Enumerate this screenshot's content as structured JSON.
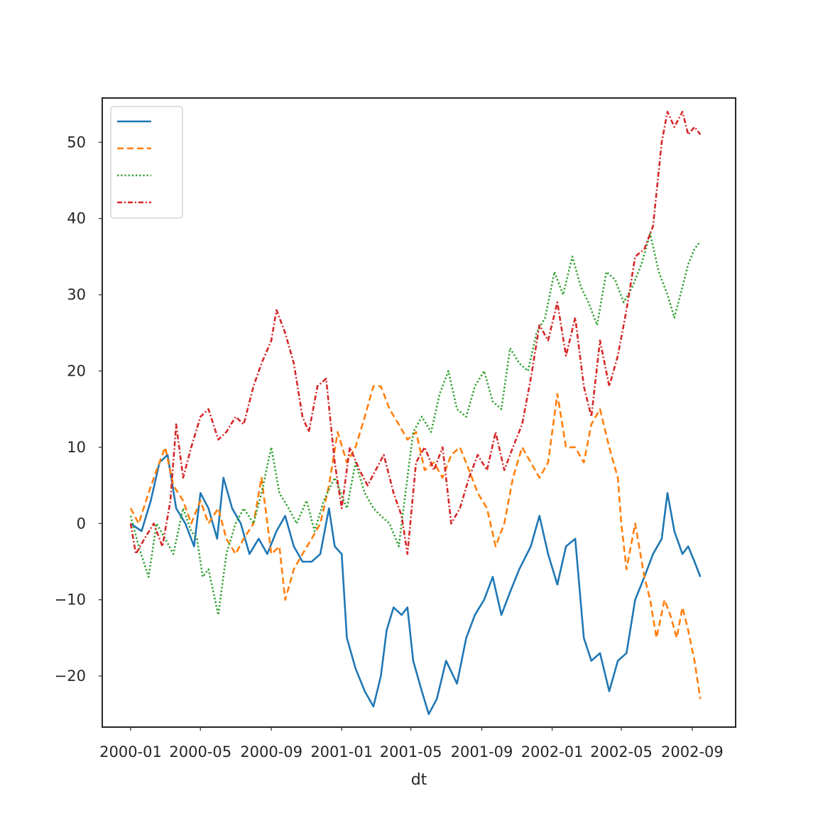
{
  "chart_data": {
    "type": "line",
    "title": "",
    "xlabel": "dt",
    "ylabel": "",
    "x_axis_type": "date",
    "xlim": [
      "2000-01-01",
      "2002-09-27"
    ],
    "ylim": [
      -26.7,
      55.8
    ],
    "grid": false,
    "legend": {
      "placement": "top-left",
      "entries_labeled": false
    },
    "x_tick_labels": [
      "2000-01",
      "2000-05",
      "2000-09",
      "2001-01",
      "2001-05",
      "2001-09",
      "2002-01",
      "2002-05",
      "2002-09"
    ],
    "x_tick_dates": [
      "2000-01-01",
      "2000-05-01",
      "2000-09-01",
      "2001-01-01",
      "2001-05-01",
      "2001-09-01",
      "2002-01-01",
      "2002-05-01",
      "2002-09-01"
    ],
    "y_tick_labels": [
      "−20",
      "−10",
      "0",
      "10",
      "20",
      "30",
      "40",
      "50"
    ],
    "y_tick_values": [
      -20,
      -10,
      0,
      10,
      20,
      30,
      40,
      50
    ],
    "series": [
      {
        "color": "#1f77b4",
        "dash": "solid",
        "points": [
          [
            "2000-01-01",
            0
          ],
          [
            "2000-01-20",
            -1
          ],
          [
            "2000-02-05",
            3
          ],
          [
            "2000-02-20",
            8
          ],
          [
            "2000-03-05",
            9
          ],
          [
            "2000-03-20",
            2
          ],
          [
            "2000-04-05",
            0
          ],
          [
            "2000-04-20",
            -3
          ],
          [
            "2000-05-01",
            4
          ],
          [
            "2000-05-15",
            2
          ],
          [
            "2000-05-30",
            -2
          ],
          [
            "2000-06-10",
            6
          ],
          [
            "2000-06-25",
            2
          ],
          [
            "2000-07-10",
            0
          ],
          [
            "2000-07-25",
            -4
          ],
          [
            "2000-08-10",
            -2
          ],
          [
            "2000-08-25",
            -4
          ],
          [
            "2000-09-10",
            -1
          ],
          [
            "2000-09-25",
            1
          ],
          [
            "2000-10-10",
            -3
          ],
          [
            "2000-10-25",
            -5
          ],
          [
            "2000-11-10",
            -5
          ],
          [
            "2000-11-25",
            -4
          ],
          [
            "2000-12-10",
            2
          ],
          [
            "2000-12-20",
            -3
          ],
          [
            "2001-01-01",
            -4
          ],
          [
            "2001-01-10",
            -15
          ],
          [
            "2001-01-25",
            -19
          ],
          [
            "2001-02-10",
            -22
          ],
          [
            "2001-02-25",
            -24
          ],
          [
            "2001-03-10",
            -20
          ],
          [
            "2001-03-20",
            -14
          ],
          [
            "2001-04-01",
            -11
          ],
          [
            "2001-04-15",
            -12
          ],
          [
            "2001-04-25",
            -11
          ],
          [
            "2001-05-05",
            -18
          ],
          [
            "2001-05-20",
            -22
          ],
          [
            "2001-06-01",
            -25
          ],
          [
            "2001-06-15",
            -23
          ],
          [
            "2001-07-01",
            -18
          ],
          [
            "2001-07-20",
            -21
          ],
          [
            "2001-08-05",
            -15
          ],
          [
            "2001-08-20",
            -12
          ],
          [
            "2001-09-05",
            -10
          ],
          [
            "2001-09-20",
            -7
          ],
          [
            "2001-10-05",
            -12
          ],
          [
            "2001-10-20",
            -9
          ],
          [
            "2001-11-05",
            -6
          ],
          [
            "2001-11-25",
            -3
          ],
          [
            "2001-12-10",
            1
          ],
          [
            "2001-12-25",
            -4
          ],
          [
            "2002-01-10",
            -8
          ],
          [
            "2002-01-25",
            -3
          ],
          [
            "2002-02-10",
            -2
          ],
          [
            "2002-02-25",
            -15
          ],
          [
            "2002-03-10",
            -18
          ],
          [
            "2002-03-25",
            -17
          ],
          [
            "2002-04-10",
            -22
          ],
          [
            "2002-04-25",
            -18
          ],
          [
            "2002-05-10",
            -17
          ],
          [
            "2002-05-25",
            -10
          ],
          [
            "2002-06-10",
            -7
          ],
          [
            "2002-06-25",
            -4
          ],
          [
            "2002-07-10",
            -2
          ],
          [
            "2002-07-20",
            4
          ],
          [
            "2002-08-01",
            -1
          ],
          [
            "2002-08-15",
            -4
          ],
          [
            "2002-08-25",
            -3
          ],
          [
            "2002-09-05",
            -5
          ],
          [
            "2002-09-15",
            -7
          ]
        ]
      },
      {
        "color": "#ff7f0e",
        "dash": "dashed",
        "points": [
          [
            "2000-01-01",
            2
          ],
          [
            "2000-01-15",
            0
          ],
          [
            "2000-02-01",
            4
          ],
          [
            "2000-02-15",
            7
          ],
          [
            "2000-03-01",
            10
          ],
          [
            "2000-03-15",
            5
          ],
          [
            "2000-04-01",
            3
          ],
          [
            "2000-04-15",
            0
          ],
          [
            "2000-05-01",
            3
          ],
          [
            "2000-05-15",
            0
          ],
          [
            "2000-06-01",
            2
          ],
          [
            "2000-06-15",
            -2
          ],
          [
            "2000-07-01",
            -4
          ],
          [
            "2000-07-15",
            -2
          ],
          [
            "2000-08-01",
            0
          ],
          [
            "2000-08-15",
            6
          ],
          [
            "2000-09-01",
            -4
          ],
          [
            "2000-09-15",
            -3
          ],
          [
            "2000-09-25",
            -10
          ],
          [
            "2000-10-10",
            -6
          ],
          [
            "2000-10-25",
            -4
          ],
          [
            "2000-11-10",
            -2
          ],
          [
            "2000-11-25",
            0
          ],
          [
            "2000-12-10",
            5
          ],
          [
            "2000-12-25",
            12
          ],
          [
            "2001-01-10",
            8
          ],
          [
            "2001-01-25",
            10
          ],
          [
            "2001-02-10",
            14
          ],
          [
            "2001-02-25",
            18
          ],
          [
            "2001-03-10",
            18
          ],
          [
            "2001-03-25",
            15
          ],
          [
            "2001-04-10",
            13
          ],
          [
            "2001-04-25",
            11
          ],
          [
            "2001-05-10",
            12
          ],
          [
            "2001-05-25",
            7
          ],
          [
            "2001-06-10",
            8
          ],
          [
            "2001-06-25",
            6
          ],
          [
            "2001-07-10",
            9
          ],
          [
            "2001-07-25",
            10
          ],
          [
            "2001-08-10",
            7
          ],
          [
            "2001-08-25",
            4
          ],
          [
            "2001-09-10",
            2
          ],
          [
            "2001-09-25",
            -3
          ],
          [
            "2001-10-10",
            0
          ],
          [
            "2001-10-25",
            6
          ],
          [
            "2001-11-10",
            10
          ],
          [
            "2001-11-25",
            8
          ],
          [
            "2001-12-10",
            6
          ],
          [
            "2001-12-25",
            8
          ],
          [
            "2002-01-10",
            17
          ],
          [
            "2002-01-25",
            10
          ],
          [
            "2002-02-10",
            10
          ],
          [
            "2002-02-25",
            8
          ],
          [
            "2002-03-10",
            13
          ],
          [
            "2002-03-25",
            15
          ],
          [
            "2002-04-10",
            10
          ],
          [
            "2002-04-25",
            6
          ],
          [
            "2002-05-01",
            0
          ],
          [
            "2002-05-10",
            -6
          ],
          [
            "2002-05-25",
            0
          ],
          [
            "2002-06-10",
            -7
          ],
          [
            "2002-06-20",
            -10
          ],
          [
            "2002-07-01",
            -15
          ],
          [
            "2002-07-15",
            -10
          ],
          [
            "2002-07-25",
            -12
          ],
          [
            "2002-08-05",
            -15
          ],
          [
            "2002-08-15",
            -11
          ],
          [
            "2002-08-25",
            -14
          ],
          [
            "2002-09-05",
            -18
          ],
          [
            "2002-09-15",
            -23
          ]
        ]
      },
      {
        "color": "#2ca02c",
        "dash": "dotted",
        "points": [
          [
            "2000-01-01",
            1
          ],
          [
            "2000-01-15",
            -3
          ],
          [
            "2000-02-01",
            -7
          ],
          [
            "2000-02-15",
            0
          ],
          [
            "2000-03-01",
            -2
          ],
          [
            "2000-03-15",
            -4
          ],
          [
            "2000-04-01",
            2
          ],
          [
            "2000-04-15",
            -1
          ],
          [
            "2000-04-25",
            -2
          ],
          [
            "2000-05-05",
            -7
          ],
          [
            "2000-05-15",
            -6
          ],
          [
            "2000-06-01",
            -12
          ],
          [
            "2000-06-15",
            -4
          ],
          [
            "2000-07-01",
            0
          ],
          [
            "2000-07-15",
            2
          ],
          [
            "2000-08-01",
            0
          ],
          [
            "2000-08-15",
            4
          ],
          [
            "2000-09-01",
            10
          ],
          [
            "2000-09-15",
            4
          ],
          [
            "2000-10-01",
            2
          ],
          [
            "2000-10-15",
            0
          ],
          [
            "2000-11-01",
            3
          ],
          [
            "2000-11-15",
            -1
          ],
          [
            "2000-12-01",
            3
          ],
          [
            "2000-12-20",
            6
          ],
          [
            "2001-01-10",
            2
          ],
          [
            "2001-01-25",
            8
          ],
          [
            "2001-02-10",
            4
          ],
          [
            "2001-02-25",
            2
          ],
          [
            "2001-03-10",
            1
          ],
          [
            "2001-03-25",
            0
          ],
          [
            "2001-04-10",
            -3
          ],
          [
            "2001-04-20",
            3
          ],
          [
            "2001-05-05",
            12
          ],
          [
            "2001-05-20",
            14
          ],
          [
            "2001-06-05",
            12
          ],
          [
            "2001-06-20",
            17
          ],
          [
            "2001-07-05",
            20
          ],
          [
            "2001-07-20",
            15
          ],
          [
            "2001-08-05",
            14
          ],
          [
            "2001-08-20",
            18
          ],
          [
            "2001-09-05",
            20
          ],
          [
            "2001-09-20",
            16
          ],
          [
            "2001-10-05",
            15
          ],
          [
            "2001-10-20",
            23
          ],
          [
            "2001-11-05",
            21
          ],
          [
            "2001-11-20",
            20
          ],
          [
            "2001-12-05",
            25
          ],
          [
            "2001-12-20",
            27
          ],
          [
            "2002-01-05",
            33
          ],
          [
            "2002-01-20",
            30
          ],
          [
            "2002-02-05",
            35
          ],
          [
            "2002-02-20",
            31
          ],
          [
            "2002-03-05",
            29
          ],
          [
            "2002-03-20",
            26
          ],
          [
            "2002-04-05",
            33
          ],
          [
            "2002-04-20",
            32
          ],
          [
            "2002-05-05",
            29
          ],
          [
            "2002-05-20",
            31
          ],
          [
            "2002-06-05",
            34
          ],
          [
            "2002-06-20",
            38
          ],
          [
            "2002-07-05",
            33
          ],
          [
            "2002-07-20",
            30
          ],
          [
            "2002-08-01",
            27
          ],
          [
            "2002-08-15",
            31
          ],
          [
            "2002-08-25",
            34
          ],
          [
            "2002-09-05",
            36
          ],
          [
            "2002-09-15",
            37
          ]
        ]
      },
      {
        "color": "#d62728",
        "dash": "dashdot",
        "points": [
          [
            "2000-01-01",
            0
          ],
          [
            "2000-01-10",
            -4
          ],
          [
            "2000-01-25",
            -2
          ],
          [
            "2000-02-10",
            0
          ],
          [
            "2000-02-25",
            -3
          ],
          [
            "2000-03-10",
            3
          ],
          [
            "2000-03-20",
            13
          ],
          [
            "2000-04-01",
            6
          ],
          [
            "2000-04-15",
            10
          ],
          [
            "2000-05-01",
            14
          ],
          [
            "2000-05-15",
            15
          ],
          [
            "2000-06-01",
            11
          ],
          [
            "2000-06-15",
            12
          ],
          [
            "2000-07-01",
            14
          ],
          [
            "2000-07-15",
            13
          ],
          [
            "2000-08-01",
            18
          ],
          [
            "2000-08-15",
            21
          ],
          [
            "2000-09-01",
            24
          ],
          [
            "2000-09-10",
            28
          ],
          [
            "2000-09-25",
            25
          ],
          [
            "2000-10-10",
            21
          ],
          [
            "2000-10-25",
            14
          ],
          [
            "2000-11-05",
            12
          ],
          [
            "2000-11-20",
            18
          ],
          [
            "2000-12-05",
            19
          ],
          [
            "2000-12-20",
            8
          ],
          [
            "2001-01-01",
            2
          ],
          [
            "2001-01-15",
            10
          ],
          [
            "2001-02-01",
            7
          ],
          [
            "2001-02-15",
            5
          ],
          [
            "2001-03-01",
            7
          ],
          [
            "2001-03-15",
            9
          ],
          [
            "2001-04-01",
            4
          ],
          [
            "2001-04-15",
            1
          ],
          [
            "2001-04-25",
            -4
          ],
          [
            "2001-05-10",
            8
          ],
          [
            "2001-05-25",
            10
          ],
          [
            "2001-06-10",
            7
          ],
          [
            "2001-06-25",
            10
          ],
          [
            "2001-07-10",
            0
          ],
          [
            "2001-07-25",
            2
          ],
          [
            "2001-08-10",
            6
          ],
          [
            "2001-08-25",
            9
          ],
          [
            "2001-09-10",
            7
          ],
          [
            "2001-09-25",
            12
          ],
          [
            "2001-10-10",
            7
          ],
          [
            "2001-10-25",
            10
          ],
          [
            "2001-11-10",
            13
          ],
          [
            "2001-11-25",
            19
          ],
          [
            "2001-12-10",
            26
          ],
          [
            "2001-12-25",
            24
          ],
          [
            "2002-01-10",
            29
          ],
          [
            "2002-01-25",
            22
          ],
          [
            "2002-02-10",
            27
          ],
          [
            "2002-02-25",
            18
          ],
          [
            "2002-03-10",
            14
          ],
          [
            "2002-03-25",
            24
          ],
          [
            "2002-04-10",
            18
          ],
          [
            "2002-04-25",
            22
          ],
          [
            "2002-05-10",
            28
          ],
          [
            "2002-05-25",
            35
          ],
          [
            "2002-06-10",
            36
          ],
          [
            "2002-06-25",
            39
          ],
          [
            "2002-07-10",
            50
          ],
          [
            "2002-07-20",
            54
          ],
          [
            "2002-08-01",
            52
          ],
          [
            "2002-08-15",
            54
          ],
          [
            "2002-08-25",
            51
          ],
          [
            "2002-09-05",
            52
          ],
          [
            "2002-09-15",
            51
          ]
        ]
      }
    ]
  }
}
